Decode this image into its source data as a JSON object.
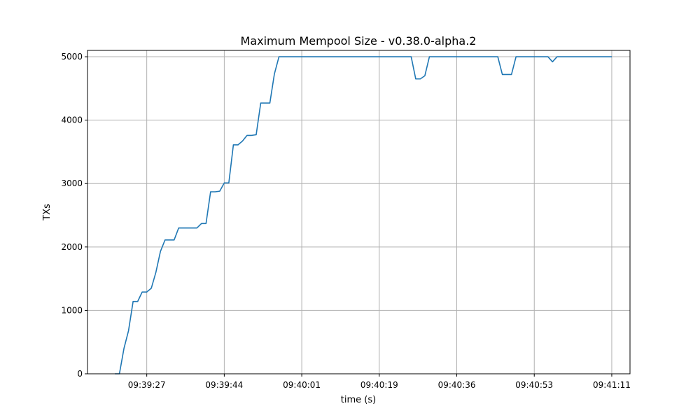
{
  "chart_data": {
    "type": "line",
    "title": "Maximum Mempool Size  -  v0.38.0-alpha.2",
    "xlabel": "time (s)",
    "ylabel": "TXs",
    "x_tick_labels": [
      "09:39:27",
      "09:39:44",
      "09:40:01",
      "09:40:19",
      "09:40:36",
      "09:40:53",
      "09:41:11"
    ],
    "x_tick_values": [
      0,
      17,
      34,
      51,
      68,
      85,
      102
    ],
    "xlim": [
      -13,
      106
    ],
    "y_tick_values": [
      0,
      1000,
      2000,
      3000,
      4000,
      5000
    ],
    "ylim": [
      0,
      5100
    ],
    "grid": true,
    "line_color": "#1f77b4",
    "series": [
      {
        "x": [
          -7,
          -6,
          -5,
          -4,
          -3,
          -2,
          -1,
          0,
          1,
          2,
          3,
          4,
          5,
          6,
          7,
          8,
          9,
          10,
          11,
          12,
          13,
          14,
          15,
          16,
          17,
          18,
          19,
          20,
          21,
          22,
          23,
          24,
          25,
          26,
          27,
          28,
          29,
          30,
          31,
          32,
          33,
          34,
          35,
          36,
          37,
          38,
          39,
          40,
          41,
          42,
          43,
          44,
          45,
          46,
          47,
          48,
          49,
          50,
          51,
          52,
          53,
          54,
          55,
          56,
          57,
          58,
          59,
          60,
          61,
          62,
          63,
          64,
          65,
          66,
          67,
          68,
          69,
          70,
          71,
          72,
          73,
          74,
          75,
          76,
          77,
          78,
          79,
          80,
          81,
          82,
          83,
          84,
          85,
          86,
          87,
          88,
          89,
          90,
          91,
          92,
          93,
          94,
          95,
          96,
          97,
          98,
          99,
          100,
          101,
          102
        ],
        "values": [
          0,
          0,
          400,
          680,
          1140,
          1140,
          1290,
          1290,
          1350,
          1600,
          1930,
          2110,
          2110,
          2110,
          2300,
          2300,
          2300,
          2300,
          2300,
          2370,
          2370,
          2870,
          2870,
          2880,
          3010,
          3010,
          3610,
          3610,
          3670,
          3760,
          3760,
          3770,
          4270,
          4270,
          4270,
          4730,
          5000,
          5000,
          5000,
          5000,
          5000,
          5000,
          5000,
          5000,
          5000,
          5000,
          5000,
          5000,
          5000,
          5000,
          5000,
          5000,
          5000,
          5000,
          5000,
          5000,
          5000,
          5000,
          5000,
          5000,
          5000,
          5000,
          5000,
          5000,
          5000,
          5000,
          4650,
          4650,
          4700,
          5000,
          5000,
          5000,
          5000,
          5000,
          5000,
          5000,
          5000,
          5000,
          5000,
          5000,
          5000,
          5000,
          5000,
          5000,
          5000,
          4720,
          4720,
          4720,
          5000,
          5000,
          5000,
          5000,
          5000,
          5000,
          5000,
          5000,
          4920,
          5000,
          5000,
          5000,
          5000,
          5000,
          5000,
          5000,
          5000,
          5000,
          5000,
          5000,
          5000,
          5000
        ]
      }
    ]
  }
}
